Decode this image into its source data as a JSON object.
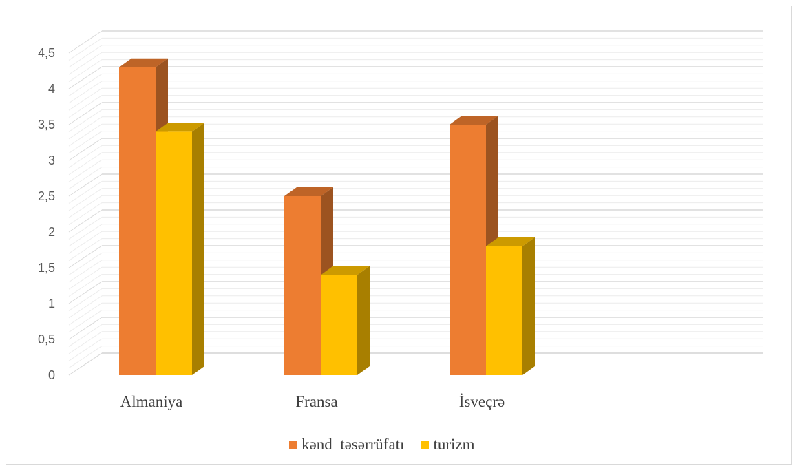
{
  "chart_data": {
    "type": "bar",
    "subtype": "3d-clustered-column",
    "title": "",
    "xlabel": "",
    "ylabel": "",
    "categories": [
      "Almaniya",
      "Fransa",
      "İsveçrə",
      ""
    ],
    "series": [
      {
        "name": "kənd  təsərrüfatı",
        "values": [
          4.3,
          2.5,
          3.5,
          null
        ],
        "color": "#ED7D31"
      },
      {
        "name": "turizm",
        "values": [
          3.4,
          1.4,
          1.8,
          null
        ],
        "color": "#FFC000"
      }
    ],
    "yticks": [
      "0",
      "0,5",
      "1",
      "1,5",
      "2",
      "2,5",
      "3",
      "3,5",
      "4",
      "4,5"
    ],
    "ylim": [
      0,
      4.5
    ],
    "grid": true,
    "legend_position": "bottom"
  }
}
